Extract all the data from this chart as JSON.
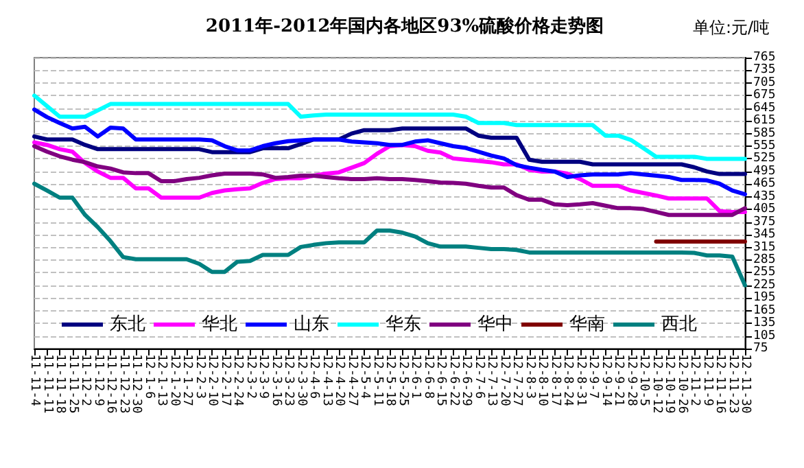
{
  "chart_data": {
    "type": "line",
    "title": "2011年-2012年国内各地区93%硫酸价格走势图",
    "annotations": [
      "单位:元/吨"
    ],
    "categories": [
      "11-11-4",
      "11-11-11",
      "11-11-18",
      "11-11-25",
      "11-12-2",
      "11-12-9",
      "11-12-16",
      "11-12-23",
      "11-12-30",
      "12-1-6",
      "12-1-13",
      "12-1-20",
      "12-1-27",
      "12-2-3",
      "12-2-10",
      "12-2-17",
      "12-2-24",
      "12-3-2",
      "12-3-9",
      "12-3-16",
      "12-3-23",
      "12-3-30",
      "12-4-6",
      "12-4-13",
      "12-4-20",
      "12-4-27",
      "12-5-4",
      "12-5-11",
      "12-5-18",
      "12-5-25",
      "12-6-1",
      "12-6-8",
      "12-6-15",
      "12-6-22",
      "12-6-29",
      "12-7-6",
      "12-7-13",
      "12-7-20",
      "12-7-27",
      "12-8-3",
      "12-8-10",
      "12-8-17",
      "12-8-24",
      "12-8-31",
      "12-9-7",
      "12-9-14",
      "12-9-21",
      "12-9-28",
      "12-10-5",
      "12-10-12",
      "12-10-19",
      "12-10-26",
      "12-11-2",
      "12-11-9",
      "12-11-16",
      "12-11-23",
      "12-11-30"
    ],
    "series": [
      {
        "name": "东北",
        "color": "#000080",
        "values": [
          578,
          571,
          571,
          571,
          558,
          548,
          548,
          548,
          548,
          548,
          548,
          548,
          548,
          548,
          541,
          541,
          541,
          541,
          550,
          550,
          550,
          560,
          571,
          571,
          571,
          585,
          593,
          593,
          593,
          597,
          597,
          597,
          597,
          597,
          597,
          580,
          575,
          575,
          575,
          523,
          518,
          518,
          518,
          518,
          512,
          512,
          512,
          512,
          512,
          512,
          512,
          512,
          505,
          495,
          489,
          489,
          489
        ]
      },
      {
        "name": "华北",
        "color": "#ff00ff",
        "values": [
          564,
          558,
          548,
          542,
          515,
          495,
          480,
          480,
          455,
          455,
          433,
          433,
          433,
          433,
          444,
          450,
          453,
          455,
          468,
          477,
          479,
          479,
          485,
          490,
          493,
          504,
          515,
          537,
          555,
          558,
          555,
          544,
          540,
          526,
          523,
          520,
          517,
          512,
          512,
          499,
          495,
          495,
          490,
          477,
          461,
          461,
          461,
          450,
          444,
          438,
          431,
          431,
          431,
          431,
          401,
          399,
          399
        ]
      },
      {
        "name": "山东",
        "color": "#0000ff",
        "values": [
          642,
          624,
          610,
          597,
          601,
          578,
          599,
          597,
          571,
          571,
          571,
          571,
          571,
          571,
          569,
          555,
          545,
          545,
          555,
          562,
          567,
          569,
          571,
          571,
          571,
          566,
          564,
          562,
          558,
          558,
          566,
          569,
          562,
          555,
          551,
          542,
          533,
          526,
          510,
          504,
          499,
          495,
          482,
          486,
          488,
          488,
          488,
          491,
          488,
          485,
          482,
          475,
          475,
          474,
          466,
          450,
          441
        ]
      },
      {
        "name": "华东",
        "color": "#00ffff",
        "values": [
          675,
          650,
          625,
          625,
          625,
          640,
          655,
          655,
          655,
          655,
          655,
          655,
          655,
          655,
          655,
          655,
          655,
          655,
          655,
          655,
          655,
          625,
          628,
          630,
          630,
          630,
          630,
          630,
          630,
          630,
          630,
          630,
          630,
          630,
          625,
          610,
          610,
          610,
          605,
          605,
          605,
          605,
          605,
          605,
          605,
          580,
          580,
          570,
          550,
          530,
          530,
          530,
          530,
          525,
          525,
          525,
          525
        ]
      },
      {
        "name": "华中",
        "color": "#800080",
        "values": [
          555,
          542,
          531,
          523,
          517,
          507,
          502,
          493,
          491,
          491,
          472,
          472,
          477,
          480,
          486,
          490,
          490,
          490,
          488,
          480,
          482,
          485,
          485,
          482,
          479,
          477,
          477,
          479,
          477,
          477,
          475,
          472,
          469,
          468,
          466,
          461,
          457,
          457,
          439,
          428,
          428,
          417,
          415,
          417,
          420,
          414,
          408,
          408,
          406,
          399,
          392,
          392,
          392,
          392,
          392,
          392,
          408
        ]
      },
      {
        "name": "华南",
        "color": "#800000",
        "values": [
          null,
          null,
          null,
          null,
          null,
          null,
          null,
          null,
          null,
          null,
          null,
          null,
          null,
          null,
          null,
          null,
          null,
          null,
          null,
          null,
          null,
          null,
          null,
          null,
          null,
          null,
          null,
          null,
          null,
          null,
          null,
          null,
          null,
          null,
          null,
          null,
          null,
          null,
          null,
          null,
          null,
          null,
          null,
          null,
          null,
          null,
          null,
          null,
          null,
          329,
          329,
          329,
          329,
          329,
          329,
          329,
          329
        ]
      },
      {
        "name": "西北",
        "color": "#008080",
        "values": [
          466,
          450,
          433,
          433,
          392,
          363,
          330,
          292,
          287,
          287,
          287,
          287,
          287,
          276,
          257,
          257,
          281,
          283,
          297,
          297,
          297,
          316,
          321,
          325,
          327,
          327,
          327,
          355,
          355,
          350,
          341,
          325,
          317,
          317,
          317,
          314,
          311,
          311,
          309,
          303,
          303,
          303,
          303,
          303,
          303,
          303,
          303,
          303,
          303,
          303,
          303,
          303,
          302,
          296,
          296,
          293,
          225
        ]
      }
    ],
    "ylim": [
      75,
      765
    ],
    "yticks": [
      75,
      105,
      135,
      165,
      195,
      225,
      255,
      285,
      315,
      345,
      375,
      405,
      435,
      465,
      495,
      525,
      555,
      585,
      615,
      645,
      675,
      705,
      735,
      765
    ],
    "grid": "y",
    "legend": "bottom",
    "marker": "none",
    "line_style": "solid"
  }
}
